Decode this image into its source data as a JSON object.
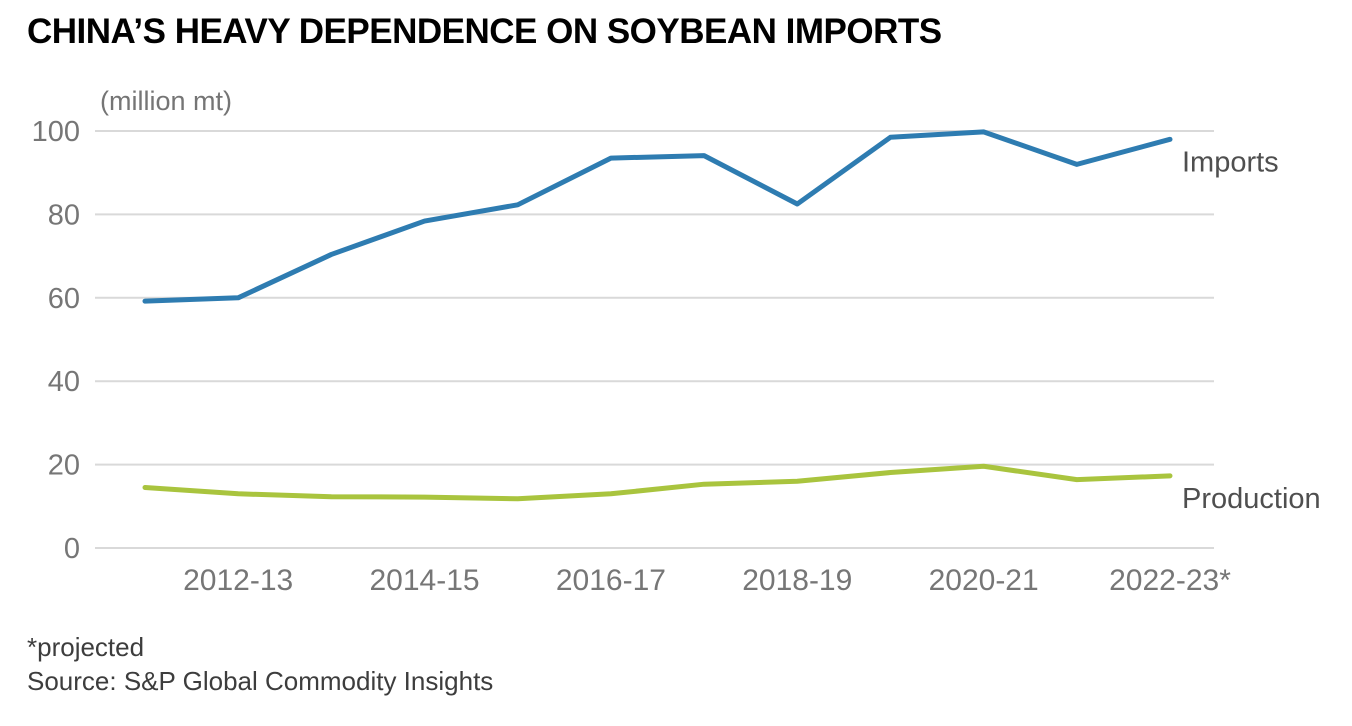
{
  "header": {
    "title": "CHINA’S HEAVY DEPENDENCE ON SOYBEAN IMPORTS",
    "unit": "(million mt)"
  },
  "footer": {
    "note": "*projected",
    "source": "Source: S&P Global Commodity Insights"
  },
  "colors": {
    "imports_line": "#2e7cb1",
    "production_line": "#a9c43e",
    "grid": "#d9d9d9",
    "axis_text": "#767676",
    "series_label": "#4f4f4f",
    "title_text": "#000000",
    "footer_text": "#3d3d3d"
  },
  "chart_data": {
    "type": "line",
    "title": "CHINA’S HEAVY DEPENDENCE ON SOYBEAN IMPORTS",
    "ylabel": "(million mt)",
    "xlabel": "",
    "grid": true,
    "legend_position": "right-of-line-end",
    "ylim": [
      0,
      100
    ],
    "yticks": [
      0,
      20,
      40,
      60,
      80,
      100
    ],
    "x": [
      "2011-12",
      "2012-13",
      "2013-14",
      "2014-15",
      "2015-16",
      "2016-17",
      "2017-18",
      "2018-19",
      "2019-20",
      "2020-21",
      "2021-22",
      "2022-23"
    ],
    "x_tick_indices": [
      1,
      3,
      5,
      7,
      9,
      11
    ],
    "x_tick_labels": [
      "2012-13",
      "2014-15",
      "2016-17",
      "2018-19",
      "2020-21",
      "2022-23*"
    ],
    "series": [
      {
        "name": "Imports",
        "color": "#2e7cb1",
        "values": [
          59.2,
          60,
          70.4,
          78.4,
          82.3,
          93.5,
          94.1,
          82.5,
          98.5,
          99.8,
          92,
          98
        ]
      },
      {
        "name": "Production",
        "color": "#a9c43e",
        "values": [
          14.5,
          13,
          12.3,
          12.2,
          11.8,
          13,
          15.3,
          16,
          18.1,
          19.6,
          16.4,
          17.3
        ]
      }
    ],
    "annotations": [
      "*projected"
    ],
    "source": "Source: S&P Global Commodity Insights"
  }
}
